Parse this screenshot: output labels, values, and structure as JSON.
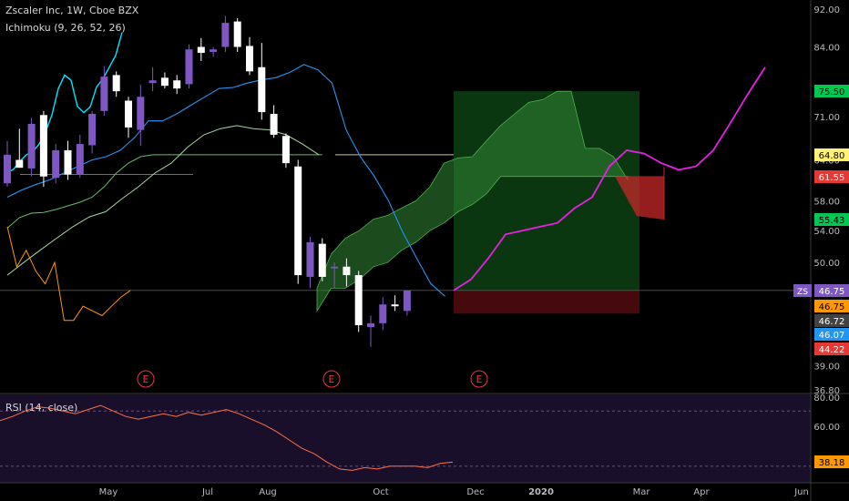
{
  "header": {
    "title": "Zscaler Inc, 1W, Cboe BZX",
    "indicator": "Ichimoku (9, 26, 52, 26)",
    "rsi_label": "RSI (14, close)"
  },
  "colors": {
    "background": "#000000",
    "bull_candle": "#7e57c2",
    "bear_candle": "#ffffff",
    "tenkan": "#00e5ff",
    "kijun": "#2196f3",
    "span_a": "#a5d6a7",
    "span_b": "#66bb6a",
    "lagging": "#ff9800",
    "forecast": "#e91ee6",
    "cloud_bull": "#2e7d32",
    "cloud_bear": "#c62828",
    "rsi_line": "#ff7043",
    "earnings": "#e53935"
  },
  "earnings_marker": "E",
  "chart_data": {
    "type": "candlestick",
    "price_axis": {
      "ticks": [
        "92.00",
        "84.00",
        "71.00",
        "64.00",
        "58.00",
        "54.00",
        "50.00",
        "39.00",
        "36.80"
      ],
      "log_scale": true
    },
    "price_labels": [
      {
        "text": "75.50",
        "color": "#00c853",
        "fg": "#000000"
      },
      {
        "text": "64.80",
        "color": "#fff176",
        "fg": "#000000"
      },
      {
        "text": "61.55",
        "color": "#e53935",
        "fg": "#ffffff"
      },
      {
        "text": "55.43",
        "color": "#00c853",
        "fg": "#000000"
      },
      {
        "text": "46.75",
        "color": "#7e57c2",
        "fg": "#ffffff",
        "tag": "ZS"
      },
      {
        "text": "46.75",
        "color": "#ff9800",
        "fg": "#000000"
      },
      {
        "text": "46.72",
        "color": "#424242",
        "fg": "#ffffff"
      },
      {
        "text": "46.07",
        "color": "#2196f3",
        "fg": "#ffffff"
      },
      {
        "text": "44.22",
        "color": "#e53935",
        "fg": "#ffffff"
      }
    ],
    "time_axis": {
      "ticks": [
        "May",
        "Jul",
        "Aug",
        "Oct",
        "Dec",
        "2020",
        "Mar",
        "Apr",
        "Jun"
      ]
    },
    "candles": [
      {
        "o": 60.5,
        "h": 67.0,
        "l": 60.0,
        "c": 64.8
      },
      {
        "o": 64.0,
        "h": 69.0,
        "l": 63.0,
        "c": 62.8
      },
      {
        "o": 62.7,
        "h": 70.8,
        "l": 61.5,
        "c": 69.8
      },
      {
        "o": 71.3,
        "h": 72.0,
        "l": 60.0,
        "c": 61.5
      },
      {
        "o": 61.3,
        "h": 66.5,
        "l": 60.5,
        "c": 65.5
      },
      {
        "o": 65.5,
        "h": 67.0,
        "l": 61.0,
        "c": 61.8
      },
      {
        "o": 61.8,
        "h": 68.0,
        "l": 61.3,
        "c": 66.5
      },
      {
        "o": 66.3,
        "h": 72.0,
        "l": 65.0,
        "c": 71.5
      },
      {
        "o": 72.0,
        "h": 80.2,
        "l": 71.2,
        "c": 78.2
      },
      {
        "o": 78.5,
        "h": 79.2,
        "l": 74.5,
        "c": 75.5
      },
      {
        "o": 73.8,
        "h": 74.5,
        "l": 67.5,
        "c": 69.2
      },
      {
        "o": 68.8,
        "h": 76.7,
        "l": 66.2,
        "c": 74.5
      },
      {
        "o": 77.0,
        "h": 80.0,
        "l": 75.5,
        "c": 77.5
      },
      {
        "o": 78.0,
        "h": 79.0,
        "l": 76.0,
        "c": 76.5
      },
      {
        "o": 77.5,
        "h": 78.5,
        "l": 75.0,
        "c": 76.0
      },
      {
        "o": 76.8,
        "h": 84.5,
        "l": 76.0,
        "c": 83.5
      },
      {
        "o": 84.0,
        "h": 85.8,
        "l": 81.2,
        "c": 82.8
      },
      {
        "o": 83.0,
        "h": 84.0,
        "l": 82.0,
        "c": 83.5
      },
      {
        "o": 84.0,
        "h": 90.5,
        "l": 83.0,
        "c": 89.0
      },
      {
        "o": 89.3,
        "h": 90.0,
        "l": 83.0,
        "c": 84.0
      },
      {
        "o": 84.2,
        "h": 86.0,
        "l": 78.5,
        "c": 79.2
      },
      {
        "o": 80.0,
        "h": 84.8,
        "l": 70.5,
        "c": 71.8
      },
      {
        "o": 71.5,
        "h": 73.0,
        "l": 67.5,
        "c": 68.0
      },
      {
        "o": 67.8,
        "h": 68.2,
        "l": 62.8,
        "c": 63.5
      },
      {
        "o": 63.0,
        "h": 64.0,
        "l": 47.5,
        "c": 48.5
      },
      {
        "o": 48.3,
        "h": 53.2,
        "l": 47.0,
        "c": 52.5
      },
      {
        "o": 52.3,
        "h": 53.0,
        "l": 47.8,
        "c": 48.3
      },
      {
        "o": 49.3,
        "h": 50.0,
        "l": 47.0,
        "c": 49.5
      },
      {
        "o": 49.5,
        "h": 50.5,
        "l": 47.2,
        "c": 48.5
      },
      {
        "o": 48.5,
        "h": 49.0,
        "l": 42.3,
        "c": 43.0
      },
      {
        "o": 42.8,
        "h": 44.0,
        "l": 40.8,
        "c": 43.2
      },
      {
        "o": 43.2,
        "h": 46.0,
        "l": 42.5,
        "c": 45.2
      },
      {
        "o": 45.2,
        "h": 46.2,
        "l": 44.5,
        "c": 45.0
      },
      {
        "o": 44.5,
        "h": 46.8,
        "l": 44.0,
        "c": 46.75
      }
    ],
    "tenkan": [
      62.0,
      62.6,
      63.8,
      64.8,
      65.3,
      66.5,
      68.5,
      71.3,
      76.0,
      78.5,
      77.5,
      72.8,
      71.7,
      72.7,
      76.3,
      77.8,
      80.0,
      82.3,
      87.0
    ],
    "kijun": [
      58.5,
      59.5,
      60.3,
      61.0,
      62.0,
      63.0,
      64.0,
      64.5,
      65.5,
      67.5,
      70.3,
      70.3,
      71.5,
      73.0,
      74.5,
      76.0,
      76.2,
      77.0,
      77.6,
      78.0,
      79.0,
      80.5,
      79.5,
      77.0,
      68.8,
      64.5,
      61.5,
      58.0,
      53.8,
      50.5,
      47.5,
      46.1
    ],
    "span_a": [
      48.5,
      50.0,
      51.5,
      53.0,
      54.5,
      55.8,
      56.5,
      58.3,
      60.0,
      62.0,
      63.5,
      66.0,
      68.0,
      69.0,
      69.5,
      69.0,
      68.8,
      68.0,
      66.5,
      64.8
    ],
    "span_b_line": [
      54.3,
      55.7,
      56.3,
      56.4,
      56.8,
      57.3,
      57.8,
      58.5,
      60.0,
      62.0,
      63.5,
      64.5,
      64.8,
      64.8,
      64.8,
      64.8,
      64.8,
      64.8,
      64.8,
      64.8,
      64.8,
      64.8,
      64.8,
      64.8,
      64.8,
      64.8,
      64.8
    ],
    "cloud": {
      "span_a": [
        47.0,
        51.0,
        53.0,
        54.0,
        55.5,
        56.0,
        57.0,
        58.0,
        60.0,
        63.5,
        64.3,
        64.5,
        67.0,
        69.5,
        71.5,
        73.5,
        74.0,
        75.5,
        75.5,
        65.8,
        65.8,
        64.5,
        61.0
      ],
      "span_b": [
        44.5,
        47.0,
        47.0,
        48.0,
        49.5,
        50.0,
        51.5,
        52.5,
        54.0,
        55.0,
        56.5,
        57.5,
        59.0,
        61.5,
        61.5,
        61.5,
        61.5,
        61.5,
        61.5,
        61.5,
        61.5,
        61.5,
        61.5
      ],
      "twist_end": {
        "a": 55.43,
        "b": 61.55
      }
    },
    "lagging": [
      54.5,
      49.5,
      51.5,
      49.0,
      47.5,
      50.0,
      43.5,
      43.5,
      45.0,
      44.5,
      44.0,
      45.0,
      46.0,
      46.75
    ],
    "forecast_path": [
      46.75,
      48.0,
      50.5,
      53.5,
      54.0,
      54.5,
      55.0,
      57.0,
      58.5,
      63.0,
      65.5,
      65.0,
      63.5,
      62.5,
      63.0,
      65.5,
      70.0,
      75.0,
      80.0
    ],
    "trade_box": {
      "entry": 46.75,
      "target": 75.5,
      "stop": 44.22
    },
    "reference_lines": [
      {
        "value": 61.8
      },
      {
        "value": 64.8
      }
    ],
    "earnings_count": 3,
    "rsi": {
      "ticks": [
        "80.00",
        "60.00",
        "38.18"
      ],
      "levels": [
        70,
        30
      ],
      "ylim": [
        20,
        80
      ],
      "values": [
        63,
        66,
        70,
        73,
        72,
        70,
        68,
        71,
        74,
        70,
        66,
        64,
        66,
        68,
        66,
        69,
        67,
        69,
        71,
        68,
        64,
        60,
        55,
        49,
        43,
        39,
        33,
        28,
        27,
        29,
        28,
        30,
        30,
        30,
        29,
        32,
        33
      ]
    }
  }
}
